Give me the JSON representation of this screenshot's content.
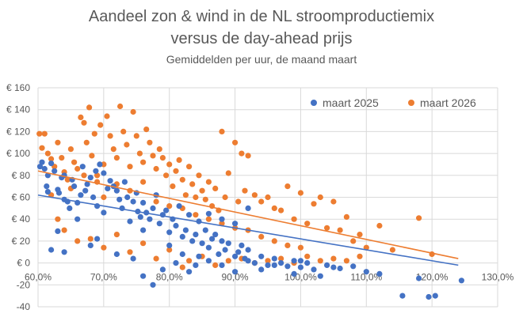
{
  "chart_data": {
    "type": "scatter",
    "title": "Aandeel zon & wind in de NL stroomproductiemix",
    "title_line2": "versus de day-ahead prijs",
    "subtitle": "Gemiddelden per uur, de maand maart",
    "xlim": [
      0.6,
      1.3
    ],
    "ylim": [
      -40,
      160
    ],
    "x_ticks": [
      0.6,
      0.7,
      0.8,
      0.9,
      1.0,
      1.1,
      1.2,
      1.3
    ],
    "x_tick_labels": [
      "60,0%",
      "70,0%",
      "80,0%",
      "90,0%",
      "100,0%",
      "110,0%",
      "120,0%",
      "130,0%"
    ],
    "y_ticks": [
      -40,
      -20,
      0,
      20,
      40,
      60,
      80,
      100,
      120,
      140,
      160
    ],
    "y_tick_labels": [
      "-40",
      "-20",
      "€ 0",
      "€ 20",
      "€ 40",
      "€ 60",
      "€ 80",
      "€ 100",
      "€ 120",
      "€ 140",
      "€ 160"
    ],
    "grid": true,
    "legend_position": "top-right",
    "series": [
      {
        "name": "maart 2025",
        "color": "#4472C4",
        "trendline": [
          [
            0.6,
            62
          ],
          [
            1.24,
            -2
          ]
        ],
        "points": [
          [
            0.603,
            88
          ],
          [
            0.606,
            92
          ],
          [
            0.61,
            86
          ],
          [
            0.613,
            70
          ],
          [
            0.615,
            65
          ],
          [
            0.62,
            91
          ],
          [
            0.625,
            84
          ],
          [
            0.63,
            67
          ],
          [
            0.632,
            64
          ],
          [
            0.636,
            78
          ],
          [
            0.64,
            80
          ],
          [
            0.645,
            56
          ],
          [
            0.648,
            50
          ],
          [
            0.652,
            76
          ],
          [
            0.655,
            70
          ],
          [
            0.66,
            55
          ],
          [
            0.665,
            62
          ],
          [
            0.668,
            88
          ],
          [
            0.672,
            66
          ],
          [
            0.675,
            72
          ],
          [
            0.68,
            78
          ],
          [
            0.684,
            60
          ],
          [
            0.688,
            84
          ],
          [
            0.69,
            52
          ],
          [
            0.694,
            90
          ],
          [
            0.7,
            82
          ],
          [
            0.706,
            68
          ],
          [
            0.71,
            75
          ],
          [
            0.715,
            70
          ],
          [
            0.72,
            66
          ],
          [
            0.724,
            58
          ],
          [
            0.728,
            50
          ],
          [
            0.732,
            74
          ],
          [
            0.736,
            60
          ],
          [
            0.74,
            38
          ],
          [
            0.745,
            56
          ],
          [
            0.75,
            64
          ],
          [
            0.752,
            47
          ],
          [
            0.756,
            42
          ],
          [
            0.76,
            55
          ],
          [
            0.765,
            46
          ],
          [
            0.77,
            40
          ],
          [
            0.775,
            50
          ],
          [
            0.78,
            62
          ],
          [
            0.785,
            36
          ],
          [
            0.79,
            44
          ],
          [
            0.795,
            48
          ],
          [
            0.8,
            28
          ],
          [
            0.805,
            40
          ],
          [
            0.81,
            34
          ],
          [
            0.815,
            52
          ],
          [
            0.82,
            24
          ],
          [
            0.825,
            30
          ],
          [
            0.83,
            44
          ],
          [
            0.835,
            20
          ],
          [
            0.84,
            26
          ],
          [
            0.845,
            38
          ],
          [
            0.85,
            18
          ],
          [
            0.855,
            30
          ],
          [
            0.86,
            14
          ],
          [
            0.865,
            22
          ],
          [
            0.87,
            26
          ],
          [
            0.875,
            8
          ],
          [
            0.88,
            20
          ],
          [
            0.885,
            12
          ],
          [
            0.89,
            18
          ],
          [
            0.9,
            6
          ],
          [
            0.905,
            10
          ],
          [
            0.91,
            16
          ],
          [
            0.915,
            4
          ],
          [
            0.92,
            12
          ],
          [
            0.93,
            0
          ],
          [
            0.94,
            6
          ],
          [
            0.95,
            -2
          ],
          [
            0.96,
            4
          ],
          [
            0.97,
            0
          ],
          [
            0.98,
            -3
          ],
          [
            0.99,
            2
          ],
          [
            1.0,
            -4
          ],
          [
            1.01,
            0
          ],
          [
            1.02,
            -6
          ],
          [
            1.04,
            -2
          ],
          [
            1.06,
            -5
          ],
          [
            1.08,
            -3
          ],
          [
            1.1,
            -8
          ],
          [
            1.12,
            -10
          ],
          [
            1.155,
            -30
          ],
          [
            1.18,
            -14
          ],
          [
            1.195,
            -31
          ],
          [
            1.205,
            -30
          ],
          [
            1.245,
            -16
          ],
          [
            0.63,
            29
          ],
          [
            0.62,
            12
          ],
          [
            0.64,
            10
          ],
          [
            0.68,
            16
          ],
          [
            0.72,
            8
          ],
          [
            0.745,
            4
          ],
          [
            0.76,
            -12
          ],
          [
            0.775,
            -20
          ],
          [
            0.79,
            -6
          ],
          [
            0.81,
            0
          ],
          [
            0.83,
            -8
          ],
          [
            0.845,
            6
          ],
          [
            0.86,
            2
          ],
          [
            0.88,
            -2
          ],
          [
            0.9,
            -8
          ],
          [
            0.92,
            2
          ],
          [
            0.94,
            -6
          ],
          [
            0.96,
            -2
          ],
          [
            0.99,
            -10
          ],
          [
            0.76,
            30
          ],
          [
            0.7,
            46
          ],
          [
            0.69,
            22
          ],
          [
            0.66,
            40
          ],
          [
            0.64,
            58
          ],
          [
            0.615,
            80
          ],
          [
            0.86,
            45
          ],
          [
            0.88,
            40
          ],
          [
            0.9,
            36
          ],
          [
            0.92,
            50
          ],
          [
            0.8,
            16
          ],
          [
            0.82,
            8
          ],
          [
            0.84,
            -2
          ],
          [
            1.05,
            -4
          ],
          [
            1.0,
            2
          ],
          [
            1.03,
            -12
          ]
        ]
      },
      {
        "name": "maart 2026",
        "color": "#ED7D31",
        "trendline": [
          [
            0.6,
            84
          ],
          [
            1.24,
            4
          ]
        ],
        "points": [
          [
            0.602,
            118
          ],
          [
            0.606,
            105
          ],
          [
            0.61,
            118
          ],
          [
            0.615,
            100
          ],
          [
            0.62,
            95
          ],
          [
            0.625,
            88
          ],
          [
            0.63,
            110
          ],
          [
            0.636,
            96
          ],
          [
            0.64,
            83
          ],
          [
            0.645,
            76
          ],
          [
            0.65,
            104
          ],
          [
            0.655,
            92
          ],
          [
            0.66,
            86
          ],
          [
            0.665,
            133
          ],
          [
            0.67,
            128
          ],
          [
            0.674,
            110
          ],
          [
            0.678,
            142
          ],
          [
            0.682,
            98
          ],
          [
            0.686,
            118
          ],
          [
            0.69,
            80
          ],
          [
            0.695,
            126
          ],
          [
            0.7,
            90
          ],
          [
            0.705,
            134
          ],
          [
            0.71,
            116
          ],
          [
            0.715,
            104
          ],
          [
            0.72,
            96
          ],
          [
            0.725,
            143
          ],
          [
            0.73,
            120
          ],
          [
            0.735,
            108
          ],
          [
            0.74,
            88
          ],
          [
            0.745,
            138
          ],
          [
            0.75,
            116
          ],
          [
            0.755,
            100
          ],
          [
            0.76,
            92
          ],
          [
            0.765,
            122
          ],
          [
            0.77,
            110
          ],
          [
            0.775,
            98
          ],
          [
            0.78,
            86
          ],
          [
            0.785,
            104
          ],
          [
            0.79,
            96
          ],
          [
            0.795,
            80
          ],
          [
            0.8,
            90
          ],
          [
            0.805,
            70
          ],
          [
            0.81,
            84
          ],
          [
            0.815,
            94
          ],
          [
            0.82,
            76
          ],
          [
            0.825,
            62
          ],
          [
            0.83,
            88
          ],
          [
            0.835,
            72
          ],
          [
            0.84,
            60
          ],
          [
            0.845,
            80
          ],
          [
            0.85,
            66
          ],
          [
            0.855,
            58
          ],
          [
            0.86,
            74
          ],
          [
            0.865,
            52
          ],
          [
            0.87,
            68
          ],
          [
            0.875,
            48
          ],
          [
            0.88,
            120
          ],
          [
            0.885,
            60
          ],
          [
            0.89,
            82
          ],
          [
            0.9,
            110
          ],
          [
            0.905,
            56
          ],
          [
            0.91,
            100
          ],
          [
            0.915,
            66
          ],
          [
            0.92,
            98
          ],
          [
            0.93,
            62
          ],
          [
            0.94,
            56
          ],
          [
            0.95,
            60
          ],
          [
            0.96,
            50
          ],
          [
            0.97,
            48
          ],
          [
            0.98,
            70
          ],
          [
            0.99,
            40
          ],
          [
            1.0,
            64
          ],
          [
            1.01,
            36
          ],
          [
            1.02,
            54
          ],
          [
            1.03,
            60
          ],
          [
            1.04,
            32
          ],
          [
            1.05,
            56
          ],
          [
            1.06,
            30
          ],
          [
            1.07,
            42
          ],
          [
            1.08,
            20
          ],
          [
            1.09,
            26
          ],
          [
            1.1,
            14
          ],
          [
            1.12,
            34
          ],
          [
            1.14,
            12
          ],
          [
            1.18,
            41
          ],
          [
            1.2,
            8
          ],
          [
            0.63,
            40
          ],
          [
            0.64,
            30
          ],
          [
            0.66,
            20
          ],
          [
            0.68,
            22
          ],
          [
            0.7,
            14
          ],
          [
            0.72,
            26
          ],
          [
            0.74,
            10
          ],
          [
            0.76,
            18
          ],
          [
            0.78,
            4
          ],
          [
            0.8,
            12
          ],
          [
            0.82,
            -4
          ],
          [
            0.83,
            2
          ],
          [
            0.85,
            6
          ],
          [
            0.87,
            -2
          ],
          [
            0.89,
            2
          ],
          [
            0.91,
            4
          ],
          [
            0.93,
            0
          ],
          [
            0.95,
            2
          ],
          [
            0.97,
            4
          ],
          [
            0.99,
            0
          ],
          [
            1.01,
            6
          ],
          [
            1.03,
            2
          ],
          [
            1.05,
            4
          ],
          [
            1.07,
            2
          ],
          [
            1.09,
            6
          ],
          [
            0.7,
            60
          ],
          [
            0.72,
            72
          ],
          [
            0.74,
            66
          ],
          [
            0.76,
            74
          ],
          [
            0.78,
            56
          ],
          [
            0.8,
            52
          ],
          [
            0.82,
            50
          ],
          [
            0.84,
            44
          ],
          [
            0.86,
            40
          ],
          [
            0.88,
            36
          ],
          [
            0.9,
            32
          ],
          [
            0.92,
            30
          ],
          [
            0.94,
            24
          ],
          [
            0.96,
            20
          ],
          [
            0.98,
            16
          ],
          [
            1.0,
            14
          ],
          [
            0.62,
            62
          ],
          [
            0.65,
            68
          ],
          [
            0.67,
            80
          ],
          [
            0.69,
            74
          ]
        ]
      }
    ]
  }
}
